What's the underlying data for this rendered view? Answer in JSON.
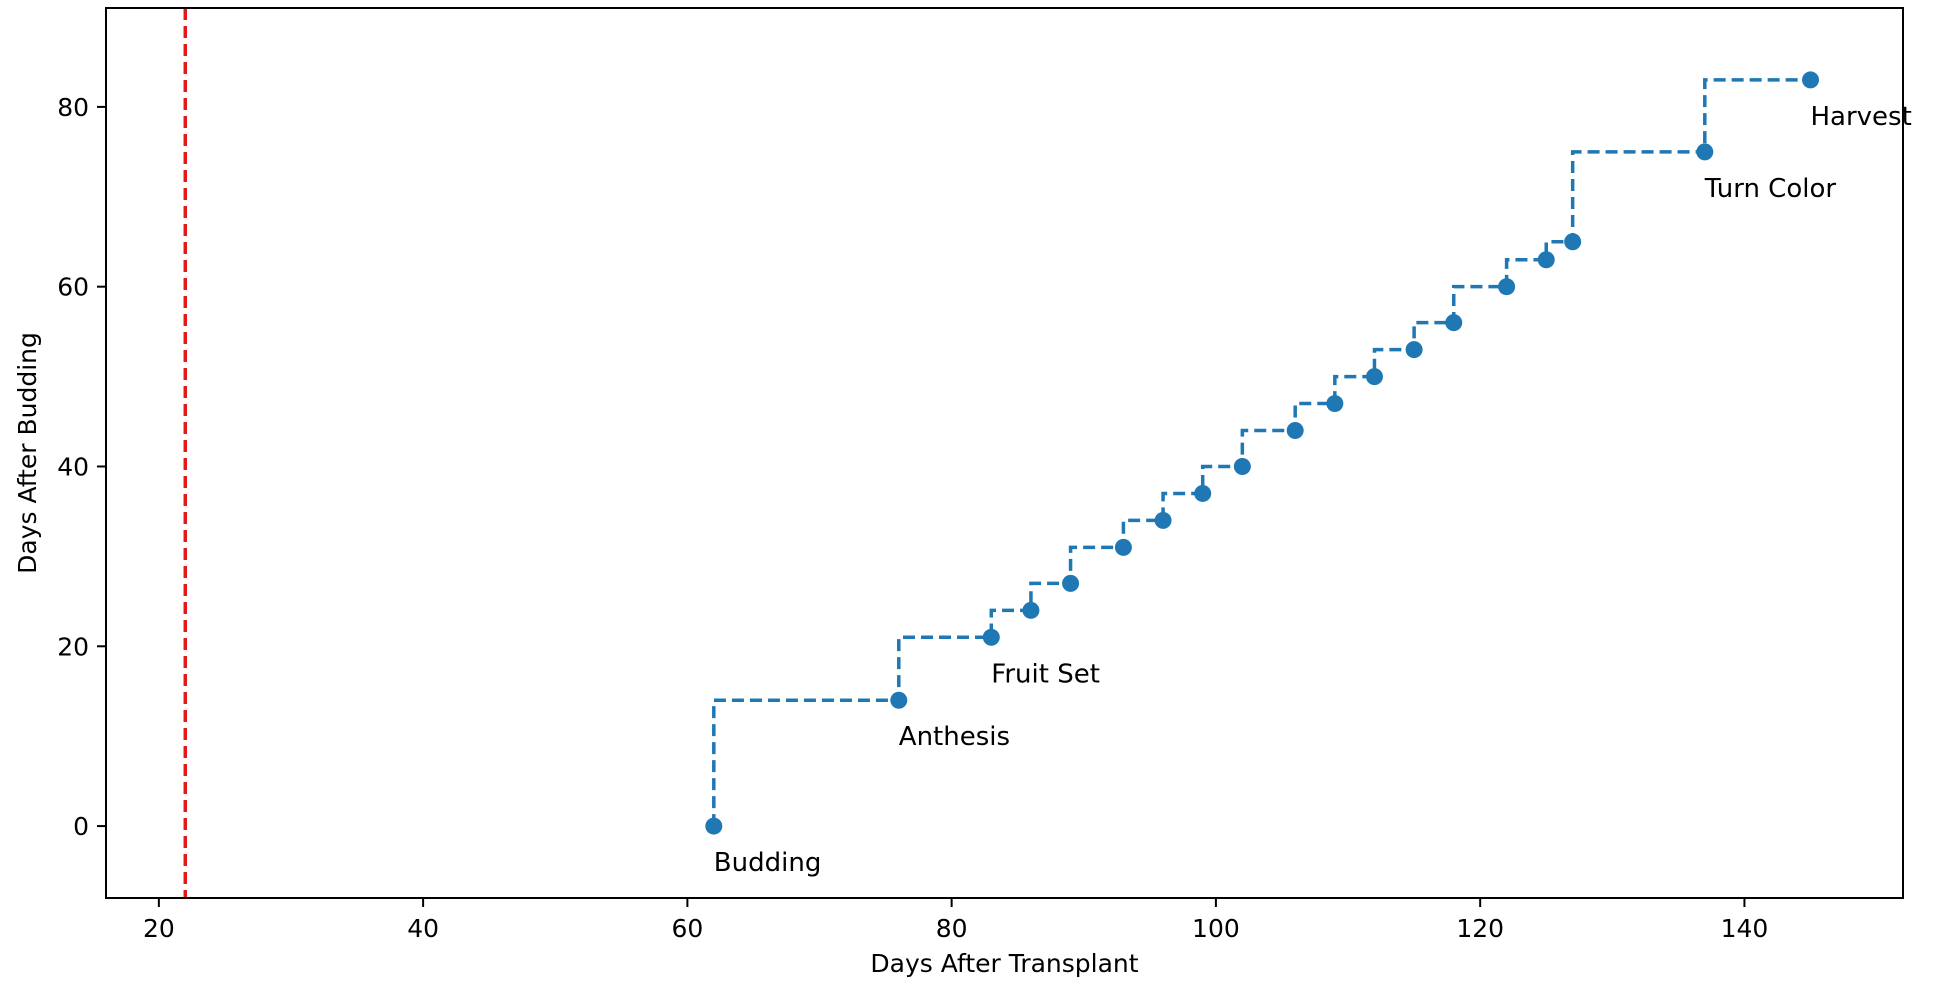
{
  "chart_data": {
    "type": "line",
    "title": "",
    "xlabel": "Days After Transplant",
    "ylabel": "Days After Budding",
    "xlim": [
      16,
      152
    ],
    "ylim": [
      -8,
      91
    ],
    "xticks": [
      20,
      40,
      60,
      80,
      100,
      120,
      140
    ],
    "yticks": [
      0,
      20,
      40,
      60,
      80
    ],
    "grid": false,
    "legend": "none",
    "reference_line": {
      "orientation": "vertical",
      "x": 22,
      "color": "#e31a1c",
      "style": "dashed"
    },
    "series": [
      {
        "color": "#1f77b4",
        "line_style": "dashed-step",
        "marker": "circle",
        "x": [
          62,
          76,
          83,
          86,
          89,
          93,
          96,
          99,
          102,
          106,
          109,
          112,
          115,
          118,
          122,
          125,
          127,
          137,
          145
        ],
        "y": [
          0,
          14,
          21,
          24,
          27,
          31,
          34,
          37,
          40,
          44,
          47,
          50,
          53,
          56,
          60,
          63,
          65,
          75,
          83
        ]
      }
    ],
    "annotations": [
      {
        "text": "Budding",
        "x": 62,
        "y": 0
      },
      {
        "text": "Anthesis",
        "x": 76,
        "y": 14
      },
      {
        "text": "Fruit Set",
        "x": 83,
        "y": 21
      },
      {
        "text": "Turn Color",
        "x": 137,
        "y": 75
      },
      {
        "text": "Harvest",
        "x": 145,
        "y": 83
      }
    ]
  }
}
